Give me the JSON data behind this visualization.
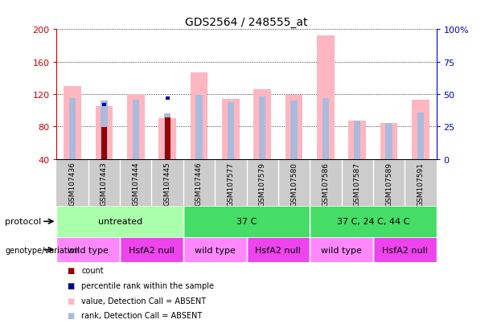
{
  "title": "GDS2564 / 248555_at",
  "samples": [
    "GSM107436",
    "GSM107443",
    "GSM107444",
    "GSM107445",
    "GSM107446",
    "GSM107577",
    "GSM107579",
    "GSM107580",
    "GSM107586",
    "GSM107587",
    "GSM107589",
    "GSM107591"
  ],
  "value_absent": [
    130,
    105,
    120,
    90,
    147,
    114,
    126,
    119,
    192,
    87,
    84,
    113
  ],
  "rank_absent": [
    115,
    112,
    113,
    96,
    119,
    110,
    117,
    112,
    115,
    87,
    84,
    97
  ],
  "count": [
    null,
    79,
    null,
    91,
    null,
    null,
    null,
    null,
    null,
    null,
    null,
    null
  ],
  "pct_rank": [
    null,
    42,
    null,
    47,
    null,
    null,
    null,
    null,
    null,
    null,
    null,
    null
  ],
  "ylim_left": [
    40,
    200
  ],
  "ylim_right": [
    0,
    100
  ],
  "yticks_left": [
    40,
    80,
    120,
    160,
    200
  ],
  "yticks_right": [
    0,
    25,
    50,
    75,
    100
  ],
  "color_value_absent": "#FFB6C1",
  "color_rank_absent": "#AABBDD",
  "color_count": "#990000",
  "color_pct_rank": "#000099",
  "bg_color": "#FFFFFF",
  "axis_color_left": "#CC0000",
  "axis_color_right": "#0000CC",
  "grid_color": "#000000",
  "xtick_bg": "#CCCCCC",
  "protocol_data": [
    {
      "label": "untreated",
      "start": 0,
      "end": 4,
      "color": "#AAFFAA"
    },
    {
      "label": "37 C",
      "start": 4,
      "end": 8,
      "color": "#44DD66"
    },
    {
      "label": "37 C, 24 C, 44 C",
      "start": 8,
      "end": 12,
      "color": "#44DD66"
    }
  ],
  "genotype_data": [
    {
      "label": "wild type",
      "start": 0,
      "end": 2,
      "color": "#FF88FF"
    },
    {
      "label": "HsfA2 null",
      "start": 2,
      "end": 4,
      "color": "#EE44EE"
    },
    {
      "label": "wild type",
      "start": 4,
      "end": 6,
      "color": "#FF88FF"
    },
    {
      "label": "HsfA2 null",
      "start": 6,
      "end": 8,
      "color": "#EE44EE"
    },
    {
      "label": "wild type",
      "start": 8,
      "end": 10,
      "color": "#FF88FF"
    },
    {
      "label": "HsfA2 null",
      "start": 10,
      "end": 12,
      "color": "#EE44EE"
    }
  ],
  "legend_items": [
    {
      "label": "count",
      "color": "#990000"
    },
    {
      "label": "percentile rank within the sample",
      "color": "#000099"
    },
    {
      "label": "value, Detection Call = ABSENT",
      "color": "#FFB6C1"
    },
    {
      "label": "rank, Detection Call = ABSENT",
      "color": "#AABBDD"
    }
  ]
}
